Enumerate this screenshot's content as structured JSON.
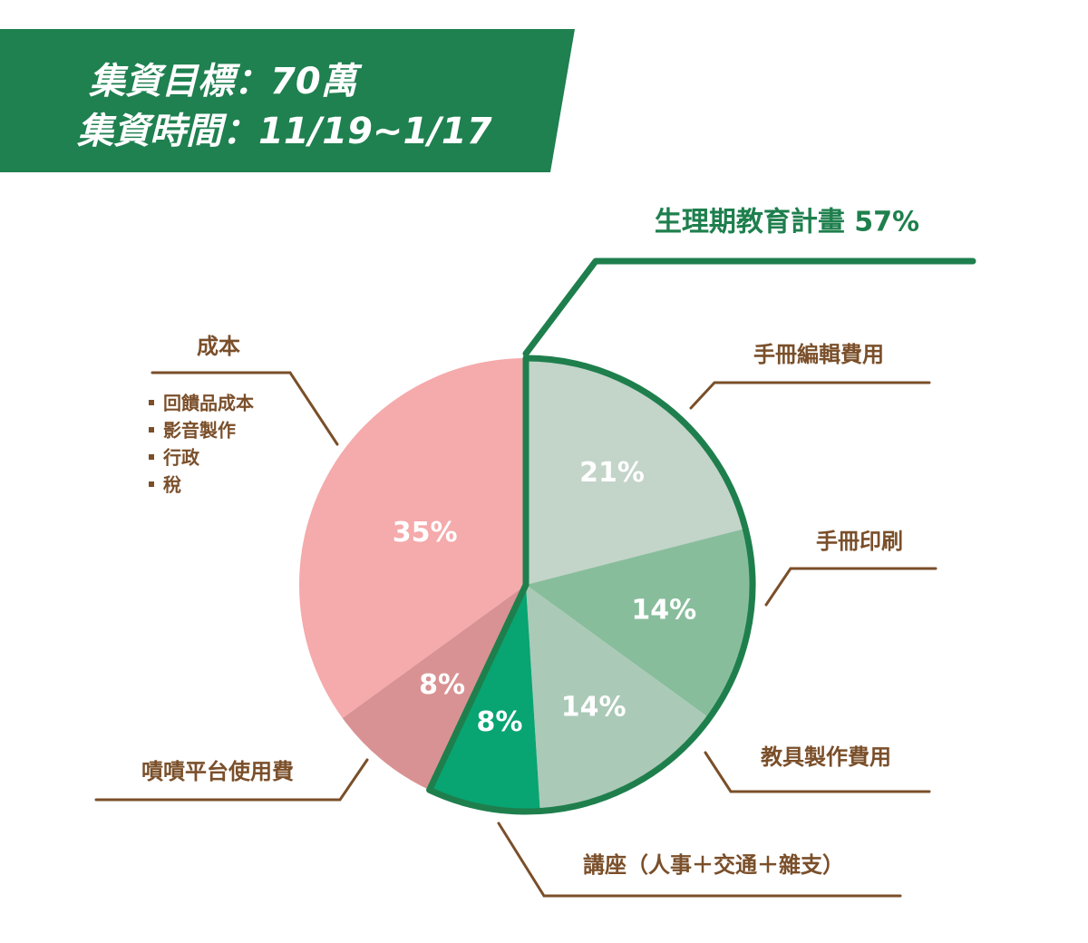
{
  "header": {
    "lines": [
      "集資目標：70萬",
      "集資時間：11/19~1/17"
    ]
  },
  "chart_data": {
    "type": "pie",
    "categories": [
      "手冊編輯費用",
      "手冊印刷",
      "教具製作費用",
      "講座（人事＋交通＋雜支）",
      "嘖嘖平台使用費",
      "成本"
    ],
    "values": [
      21,
      14,
      14,
      8,
      8,
      35
    ],
    "value_labels": [
      "21%",
      "14%",
      "14%",
      "8%",
      "8%",
      "35%"
    ],
    "colors": [
      "#c3d4c9",
      "#88bd9c",
      "#abc9b7",
      "#08a472",
      "#d99293",
      "#f5aaab"
    ],
    "group": {
      "label": "生理期教育計畫 57%",
      "color": "#1e7f4d"
    },
    "cost_items": [
      "回饋品成本",
      "影音製作",
      "行政",
      "稅"
    ]
  }
}
